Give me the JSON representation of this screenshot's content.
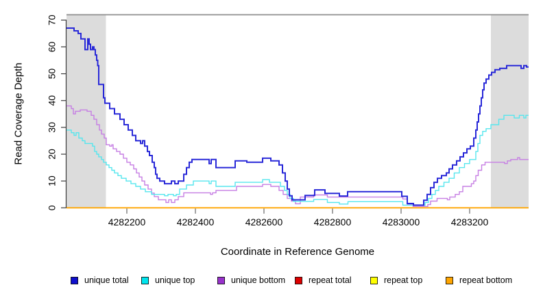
{
  "chart_data": {
    "type": "line",
    "subtype": "step-coverage-plot",
    "title": "",
    "xlabel": "Coordinate in Reference Genome",
    "ylabel": "Read Coverage Depth",
    "xlim": [
      4282024,
      4283372
    ],
    "ylim": [
      0,
      70
    ],
    "x_ticks": [
      4282200,
      4282400,
      4282600,
      4282800,
      4283000,
      4283200
    ],
    "y_ticks": [
      0,
      10,
      20,
      30,
      40,
      50,
      60,
      70
    ],
    "grid": false,
    "legend_position": "bottom",
    "background_color": "#ffffff",
    "shaded_region_color": "#dcdcdc",
    "top_border_color": "#8f8f8f",
    "axis_color": "#3a3a3a",
    "shaded_regions": [
      {
        "x0": 4282024,
        "x1": 4282139
      },
      {
        "x0": 4283262,
        "x1": 4283372
      }
    ],
    "series": [
      {
        "name": "unique total",
        "color": "#2828d8",
        "legend_color": "#0f0fcd",
        "width": 2,
        "points": [
          [
            4282024,
            67
          ],
          [
            4282046,
            66
          ],
          [
            4282058,
            65
          ],
          [
            4282066,
            63
          ],
          [
            4282078,
            59
          ],
          [
            4282086,
            63
          ],
          [
            4282090,
            61
          ],
          [
            4282094,
            59
          ],
          [
            4282100,
            60
          ],
          [
            4282104,
            59
          ],
          [
            4282108,
            57
          ],
          [
            4282112,
            55
          ],
          [
            4282115,
            53
          ],
          [
            4282118,
            46
          ],
          [
            4282132,
            41
          ],
          [
            4282136,
            39
          ],
          [
            4282150,
            37
          ],
          [
            4282164,
            35
          ],
          [
            4282180,
            33
          ],
          [
            4282192,
            31
          ],
          [
            4282204,
            29
          ],
          [
            4282216,
            27
          ],
          [
            4282226,
            25
          ],
          [
            4282240,
            24
          ],
          [
            4282246,
            25
          ],
          [
            4282252,
            23
          ],
          [
            4282260,
            21
          ],
          [
            4282266,
            19.5
          ],
          [
            4282274,
            17
          ],
          [
            4282280,
            15
          ],
          [
            4282284,
            12.5
          ],
          [
            4282288,
            11
          ],
          [
            4282296,
            10
          ],
          [
            4282310,
            9
          ],
          [
            4282330,
            10
          ],
          [
            4282340,
            9
          ],
          [
            4282350,
            10
          ],
          [
            4282366,
            12.5
          ],
          [
            4282374,
            15
          ],
          [
            4282382,
            17
          ],
          [
            4282390,
            18
          ],
          [
            4282440,
            16.5
          ],
          [
            4282446,
            18
          ],
          [
            4282460,
            15
          ],
          [
            4282516,
            17.5
          ],
          [
            4282550,
            17
          ],
          [
            4282596,
            18.5
          ],
          [
            4282620,
            17.5
          ],
          [
            4282644,
            16
          ],
          [
            4282654,
            13
          ],
          [
            4282662,
            10
          ],
          [
            4282668,
            7
          ],
          [
            4282674,
            4.5
          ],
          [
            4282682,
            3
          ],
          [
            4282720,
            4.6
          ],
          [
            4282748,
            6.7
          ],
          [
            4282778,
            5.4
          ],
          [
            4282820,
            4.4
          ],
          [
            4282844,
            6
          ],
          [
            4283002,
            4.3
          ],
          [
            4283018,
            1.6
          ],
          [
            4283036,
            1
          ],
          [
            4283066,
            2.8
          ],
          [
            4283076,
            5
          ],
          [
            4283086,
            7.5
          ],
          [
            4283096,
            9.5
          ],
          [
            4283106,
            11
          ],
          [
            4283118,
            12
          ],
          [
            4283132,
            13
          ],
          [
            4283140,
            14.5
          ],
          [
            4283150,
            16
          ],
          [
            4283162,
            17.5
          ],
          [
            4283172,
            19
          ],
          [
            4283182,
            20.5
          ],
          [
            4283192,
            22
          ],
          [
            4283202,
            23
          ],
          [
            4283212,
            26
          ],
          [
            4283218,
            29
          ],
          [
            4283222,
            32
          ],
          [
            4283226,
            35
          ],
          [
            4283230,
            38
          ],
          [
            4283234,
            41
          ],
          [
            4283238,
            44
          ],
          [
            4283242,
            46.5
          ],
          [
            4283248,
            48
          ],
          [
            4283256,
            49.5
          ],
          [
            4283264,
            50.5
          ],
          [
            4283274,
            51.5
          ],
          [
            4283288,
            52
          ],
          [
            4283308,
            53
          ],
          [
            4283350,
            52
          ],
          [
            4283358,
            53
          ],
          [
            4283366,
            52.5
          ]
        ]
      },
      {
        "name": "unique top",
        "color": "#55e6ee",
        "legend_color": "#00e5ee",
        "width": 1.4,
        "points": [
          [
            4282024,
            29
          ],
          [
            4282038,
            28
          ],
          [
            4282046,
            27
          ],
          [
            4282052,
            28
          ],
          [
            4282060,
            26
          ],
          [
            4282070,
            25
          ],
          [
            4282078,
            24
          ],
          [
            4282100,
            23
          ],
          [
            4282106,
            21
          ],
          [
            4282112,
            20
          ],
          [
            4282118,
            19
          ],
          [
            4282126,
            18
          ],
          [
            4282132,
            17
          ],
          [
            4282140,
            16
          ],
          [
            4282148,
            15
          ],
          [
            4282156,
            14
          ],
          [
            4282164,
            13
          ],
          [
            4282174,
            12
          ],
          [
            4282184,
            11
          ],
          [
            4282198,
            10
          ],
          [
            4282212,
            9
          ],
          [
            4282226,
            8
          ],
          [
            4282240,
            7
          ],
          [
            4282254,
            6
          ],
          [
            4282272,
            5
          ],
          [
            4282310,
            4.5
          ],
          [
            4282320,
            5
          ],
          [
            4282336,
            4.5
          ],
          [
            4282344,
            5
          ],
          [
            4282354,
            7
          ],
          [
            4282374,
            8.5
          ],
          [
            4282394,
            10
          ],
          [
            4282440,
            9
          ],
          [
            4282446,
            10
          ],
          [
            4282460,
            8
          ],
          [
            4282516,
            9.5
          ],
          [
            4282596,
            10.5
          ],
          [
            4282616,
            9.5
          ],
          [
            4282648,
            8
          ],
          [
            4282660,
            6.5
          ],
          [
            4282668,
            5
          ],
          [
            4282676,
            3.5
          ],
          [
            4282686,
            2.4
          ],
          [
            4282745,
            3.1
          ],
          [
            4282785,
            2
          ],
          [
            4282820,
            1.4
          ],
          [
            4282845,
            2.3
          ],
          [
            4283005,
            1
          ],
          [
            4283070,
            2
          ],
          [
            4283080,
            3.5
          ],
          [
            4283090,
            5
          ],
          [
            4283100,
            6.5
          ],
          [
            4283110,
            8
          ],
          [
            4283125,
            9.5
          ],
          [
            4283140,
            11
          ],
          [
            4283155,
            13
          ],
          [
            4283170,
            15
          ],
          [
            4283185,
            16.5
          ],
          [
            4283200,
            18
          ],
          [
            4283218,
            21
          ],
          [
            4283224,
            24
          ],
          [
            4283230,
            27
          ],
          [
            4283238,
            28.5
          ],
          [
            4283248,
            29.5
          ],
          [
            4283262,
            31
          ],
          [
            4283285,
            33
          ],
          [
            4283300,
            34.5
          ],
          [
            4283330,
            33.5
          ],
          [
            4283345,
            34.5
          ],
          [
            4283358,
            33.5
          ],
          [
            4283364,
            34.5
          ]
        ]
      },
      {
        "name": "unique bottom",
        "color": "#c67ee3",
        "legend_color": "#9932cc",
        "width": 1.4,
        "points": [
          [
            4282024,
            38
          ],
          [
            4282038,
            37
          ],
          [
            4282044,
            35
          ],
          [
            4282050,
            36
          ],
          [
            4282064,
            36.5
          ],
          [
            4282084,
            36
          ],
          [
            4282096,
            34.5
          ],
          [
            4282104,
            33
          ],
          [
            4282112,
            31
          ],
          [
            4282120,
            29
          ],
          [
            4282126,
            27.5
          ],
          [
            4282134,
            26
          ],
          [
            4282140,
            23.5
          ],
          [
            4282150,
            23
          ],
          [
            4282156,
            23.5
          ],
          [
            4282160,
            22
          ],
          [
            4282170,
            21
          ],
          [
            4282180,
            20
          ],
          [
            4282190,
            18.5
          ],
          [
            4282200,
            17
          ],
          [
            4282210,
            16
          ],
          [
            4282220,
            14.5
          ],
          [
            4282228,
            13
          ],
          [
            4282236,
            11.5
          ],
          [
            4282244,
            10
          ],
          [
            4282252,
            8.5
          ],
          [
            4282262,
            7
          ],
          [
            4282272,
            5.5
          ],
          [
            4282280,
            4.2
          ],
          [
            4282292,
            3
          ],
          [
            4282314,
            2
          ],
          [
            4282322,
            3
          ],
          [
            4282330,
            2
          ],
          [
            4282340,
            3
          ],
          [
            4282350,
            4.2
          ],
          [
            4282366,
            5.6
          ],
          [
            4282444,
            5
          ],
          [
            4282450,
            5.6
          ],
          [
            4282460,
            6.5
          ],
          [
            4282520,
            8
          ],
          [
            4282596,
            8.7
          ],
          [
            4282620,
            8
          ],
          [
            4282644,
            6.5
          ],
          [
            4282656,
            5
          ],
          [
            4282668,
            3.5
          ],
          [
            4282680,
            2.5
          ],
          [
            4282692,
            1.5
          ],
          [
            4282706,
            4
          ],
          [
            4282745,
            4.8
          ],
          [
            4282785,
            4
          ],
          [
            4283005,
            3.3
          ],
          [
            4283018,
            1.2
          ],
          [
            4283035,
            0.5
          ],
          [
            4283078,
            1.2
          ],
          [
            4283086,
            2.5
          ],
          [
            4283105,
            3.5
          ],
          [
            4283135,
            3
          ],
          [
            4283142,
            4
          ],
          [
            4283158,
            5
          ],
          [
            4283170,
            6
          ],
          [
            4283180,
            8
          ],
          [
            4283205,
            9
          ],
          [
            4283212,
            10
          ],
          [
            4283218,
            12
          ],
          [
            4283225,
            14
          ],
          [
            4283235,
            16
          ],
          [
            4283245,
            17
          ],
          [
            4283302,
            16.5
          ],
          [
            4283310,
            17.5
          ],
          [
            4283320,
            18
          ],
          [
            4283340,
            18.7
          ],
          [
            4283346,
            18
          ]
        ]
      },
      {
        "name": "repeat total",
        "color": "#dd0000",
        "legend_color": "#dd0000",
        "width": 1.4,
        "points": [
          [
            4282024,
            0
          ]
        ]
      },
      {
        "name": "repeat top",
        "color": "#ffff00",
        "legend_color": "#ffff00",
        "width": 1.4,
        "points": [
          [
            4282024,
            0
          ]
        ]
      },
      {
        "name": "repeat bottom",
        "color": "#ffa500",
        "legend_color": "#ffa500",
        "width": 1.8,
        "points": [
          [
            4282024,
            0
          ]
        ]
      }
    ]
  }
}
